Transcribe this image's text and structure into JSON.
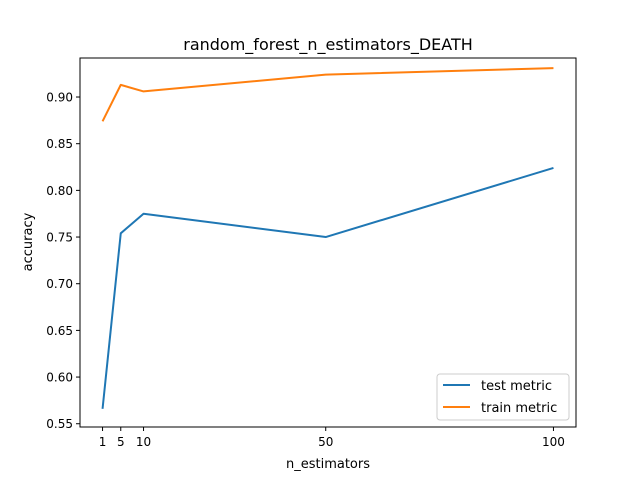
{
  "chart_data": {
    "type": "line",
    "title": "random_forest_n_estimators_DEATH",
    "xlabel": "n_estimators",
    "ylabel": "accuracy",
    "x": [
      1,
      5,
      10,
      50,
      100
    ],
    "xticks": [
      1,
      5,
      10,
      50,
      100
    ],
    "xtick_labels": [
      "1",
      "5",
      "10",
      "50",
      "100"
    ],
    "yticks": [
      0.55,
      0.6,
      0.65,
      0.7,
      0.75,
      0.8,
      0.85,
      0.9
    ],
    "ytick_labels": [
      "0.55",
      "0.60",
      "0.65",
      "0.70",
      "0.75",
      "0.80",
      "0.85",
      "0.90"
    ],
    "xlim": [
      -3.95,
      104.95
    ],
    "ylim": [
      0.5465,
      0.9418
    ],
    "grid": false,
    "legend_position": "lower-right",
    "series": [
      {
        "name": "test metric",
        "color": "#1f77b4",
        "values": [
          0.566,
          0.754,
          0.775,
          0.75,
          0.824
        ]
      },
      {
        "name": "train metric",
        "color": "#ff7f0e",
        "values": [
          0.874,
          0.913,
          0.906,
          0.924,
          0.931
        ]
      }
    ]
  }
}
